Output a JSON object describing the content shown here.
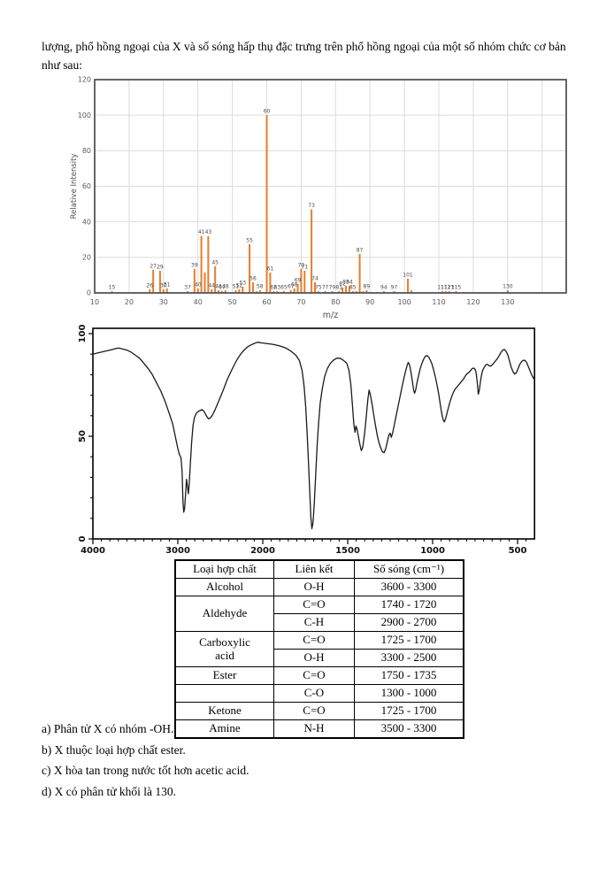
{
  "page": {
    "intro": "lượng, phổ hồng ngoại của X và số sóng hấp thụ đặc trưng trên phổ hồng ngoại của một số nhóm chức cơ bản như sau:",
    "statements": [
      "a) Phân tử X có nhóm -OH.",
      "b) X thuộc loại hợp chất ester.",
      "c) X hòa tan trong nước tốt hơn acetic acid.",
      "d) X có phân tử khối là 130."
    ]
  },
  "table": {
    "headers": [
      "Loại hợp chất",
      "Liên kết",
      "Số sóng (cm⁻¹)"
    ],
    "rows": [
      {
        "compound": "Alcohol",
        "bond": "O-H",
        "wavenumber": "3600 - 3300"
      },
      {
        "compound": "Aldehyde",
        "bond": "C=O",
        "wavenumber": "1740 - 1720"
      },
      {
        "bond": "C-H",
        "wavenumber": "2900 - 2700"
      },
      {
        "compound": "Carboxylic\nacid",
        "bond": "C=O",
        "wavenumber": "1725 - 1700"
      },
      {
        "bond": "O-H",
        "wavenumber": "3300 - 2500"
      },
      {
        "compound": "Ester",
        "bond": "C=O",
        "wavenumber": "1750 - 1735"
      },
      {
        "compound": "",
        "bond": "C-O",
        "wavenumber": "1300 - 1000"
      },
      {
        "compound": "Ketone",
        "bond": "C=O",
        "wavenumber": "1725 - 1700"
      },
      {
        "compound": "Amine",
        "bond": "N-H",
        "wavenumber": "3500 - 3300"
      }
    ]
  },
  "chart_data": [
    {
      "type": "bar",
      "name": "mass-spectrum",
      "xlabel": "m/z",
      "ylabel": "Relative Intensity",
      "xlim": [
        10,
        147
      ],
      "ylim": [
        0,
        120
      ],
      "x_ticks": [
        10,
        20,
        30,
        40,
        50,
        60,
        70,
        80,
        90,
        100,
        110,
        120,
        130
      ],
      "y_ticks": [
        0,
        20,
        40,
        60,
        80,
        100,
        120
      ],
      "grid": true,
      "bar_color": "#E87D2B",
      "label_color": "#4a4a4a",
      "axis_color": "#55565A",
      "grid_color": "#dcdcdc",
      "peaks": [
        [
          15,
          1
        ],
        [
          26,
          2
        ],
        [
          27,
          13
        ],
        [
          29,
          12.5
        ],
        [
          30,
          2
        ],
        [
          31,
          2.5
        ],
        [
          37,
          1
        ],
        [
          39,
          13.5
        ],
        [
          40,
          2.5
        ],
        [
          41,
          32
        ],
        [
          42,
          11.5
        ],
        [
          43,
          32
        ],
        [
          44,
          2
        ],
        [
          45,
          15
        ],
        [
          46,
          1.5
        ],
        [
          47,
          1
        ],
        [
          48,
          1.5
        ],
        [
          51,
          1.5
        ],
        [
          52,
          2
        ],
        [
          53,
          3.5
        ],
        [
          55,
          27.5
        ],
        [
          56,
          6
        ],
        [
          57,
          1
        ],
        [
          58,
          1.5
        ],
        [
          60,
          100
        ],
        [
          61,
          11.5
        ],
        [
          62,
          1
        ],
        [
          63,
          1
        ],
        [
          65,
          1
        ],
        [
          67,
          1.5
        ],
        [
          68,
          2.5
        ],
        [
          69,
          5
        ],
        [
          70,
          13.5
        ],
        [
          71,
          12.5
        ],
        [
          73,
          47
        ],
        [
          74,
          6
        ],
        [
          75,
          1
        ],
        [
          77,
          1
        ],
        [
          79,
          1
        ],
        [
          81,
          1
        ],
        [
          82,
          3
        ],
        [
          83,
          4
        ],
        [
          84,
          4
        ],
        [
          85,
          1
        ],
        [
          86,
          1
        ],
        [
          87,
          22
        ],
        [
          88,
          1
        ],
        [
          89,
          1.5
        ],
        [
          94,
          1
        ],
        [
          97,
          1
        ],
        [
          101,
          8
        ],
        [
          102,
          1.5
        ],
        [
          111,
          1
        ],
        [
          112,
          1
        ],
        [
          113,
          1
        ],
        [
          115,
          1
        ],
        [
          130,
          1.5
        ]
      ],
      "unlabeled": [
        42,
        57,
        86,
        88,
        102
      ]
    },
    {
      "type": "line",
      "name": "ir-spectrum",
      "x_ticks": [
        4000,
        3000,
        2000,
        1500,
        1000,
        500
      ],
      "x_scale_note": "wavenumber axis, scale change at 2000 (1000/div above, 500/div below)",
      "xlim": [
        4000,
        400
      ],
      "ylim": [
        0,
        100
      ],
      "y_ticks": [
        0,
        50,
        100
      ],
      "line_color": "#1a1a1a",
      "points": [
        [
          4000,
          90
        ],
        [
          3950,
          90.5
        ],
        [
          3900,
          91
        ],
        [
          3850,
          91.5
        ],
        [
          3800,
          92
        ],
        [
          3750,
          92.5
        ],
        [
          3700,
          93
        ],
        [
          3650,
          92.5
        ],
        [
          3600,
          92
        ],
        [
          3550,
          91
        ],
        [
          3500,
          89.5
        ],
        [
          3450,
          88
        ],
        [
          3400,
          85.5
        ],
        [
          3350,
          83
        ],
        [
          3300,
          80
        ],
        [
          3250,
          76
        ],
        [
          3200,
          72
        ],
        [
          3150,
          67
        ],
        [
          3100,
          61
        ],
        [
          3060,
          56
        ],
        [
          3030,
          50
        ],
        [
          3000,
          44
        ],
        [
          2980,
          41
        ],
        [
          2962,
          39.5
        ],
        [
          2950,
          33
        ],
        [
          2940,
          18
        ],
        [
          2930,
          13
        ],
        [
          2920,
          15
        ],
        [
          2908,
          22
        ],
        [
          2898,
          29
        ],
        [
          2888,
          26
        ],
        [
          2876,
          22
        ],
        [
          2866,
          27
        ],
        [
          2852,
          37
        ],
        [
          2838,
          47
        ],
        [
          2822,
          55
        ],
        [
          2805,
          59
        ],
        [
          2785,
          61
        ],
        [
          2765,
          62
        ],
        [
          2740,
          62.5
        ],
        [
          2715,
          63
        ],
        [
          2690,
          62
        ],
        [
          2665,
          60
        ],
        [
          2640,
          58.5
        ],
        [
          2615,
          59
        ],
        [
          2590,
          60.5
        ],
        [
          2560,
          63
        ],
        [
          2530,
          66
        ],
        [
          2500,
          69
        ],
        [
          2460,
          73
        ],
        [
          2420,
          77.5
        ],
        [
          2380,
          81
        ],
        [
          2340,
          84.5
        ],
        [
          2300,
          87.5
        ],
        [
          2260,
          90
        ],
        [
          2220,
          92
        ],
        [
          2180,
          93.5
        ],
        [
          2140,
          94.5
        ],
        [
          2100,
          95.2
        ],
        [
          2060,
          95.8
        ],
        [
          2020,
          95.5
        ],
        [
          1980,
          95.2
        ],
        [
          1940,
          94.8
        ],
        [
          1900,
          94
        ],
        [
          1865,
          93
        ],
        [
          1835,
          91.5
        ],
        [
          1805,
          89.5
        ],
        [
          1785,
          87
        ],
        [
          1768,
          82
        ],
        [
          1756,
          74
        ],
        [
          1747,
          64
        ],
        [
          1739,
          52
        ],
        [
          1731,
          38
        ],
        [
          1724,
          24
        ],
        [
          1717,
          11
        ],
        [
          1711,
          5
        ],
        [
          1704,
          8
        ],
        [
          1697,
          17
        ],
        [
          1689,
          30
        ],
        [
          1680,
          45
        ],
        [
          1671,
          57
        ],
        [
          1662,
          66
        ],
        [
          1650,
          73
        ],
        [
          1636,
          79
        ],
        [
          1620,
          83
        ],
        [
          1602,
          85.5
        ],
        [
          1585,
          87
        ],
        [
          1565,
          88
        ],
        [
          1545,
          88
        ],
        [
          1525,
          87
        ],
        [
          1505,
          85.5
        ],
        [
          1492,
          82
        ],
        [
          1481,
          75
        ],
        [
          1472,
          65
        ],
        [
          1464,
          56
        ],
        [
          1457,
          52
        ],
        [
          1451,
          55
        ],
        [
          1444,
          53
        ],
        [
          1436,
          49.5
        ],
        [
          1428,
          46
        ],
        [
          1420,
          43
        ],
        [
          1412,
          44.5
        ],
        [
          1404,
          49
        ],
        [
          1396,
          55
        ],
        [
          1388,
          62
        ],
        [
          1381,
          68
        ],
        [
          1374,
          72.5
        ],
        [
          1366,
          70
        ],
        [
          1356,
          65.5
        ],
        [
          1346,
          60
        ],
        [
          1336,
          55
        ],
        [
          1326,
          50.5
        ],
        [
          1316,
          47
        ],
        [
          1306,
          44.5
        ],
        [
          1296,
          42.5
        ],
        [
          1286,
          42
        ],
        [
          1276,
          44
        ],
        [
          1266,
          47.5
        ],
        [
          1258,
          50.5
        ],
        [
          1250,
          51.5
        ],
        [
          1243,
          49.5
        ],
        [
          1236,
          51.5
        ],
        [
          1228,
          54.5
        ],
        [
          1220,
          58
        ],
        [
          1210,
          62
        ],
        [
          1200,
          66
        ],
        [
          1190,
          70
        ],
        [
          1180,
          74
        ],
        [
          1170,
          78
        ],
        [
          1160,
          81.5
        ],
        [
          1150,
          84.5
        ],
        [
          1143,
          86
        ],
        [
          1135,
          84.5
        ],
        [
          1127,
          81
        ],
        [
          1119,
          76.5
        ],
        [
          1112,
          72.5
        ],
        [
          1106,
          71
        ],
        [
          1100,
          72.5
        ],
        [
          1092,
          76
        ],
        [
          1083,
          79.5
        ],
        [
          1073,
          83
        ],
        [
          1063,
          85.5
        ],
        [
          1053,
          87.5
        ],
        [
          1043,
          89
        ],
        [
          1033,
          89.3
        ],
        [
          1023,
          88.5
        ],
        [
          1013,
          87
        ],
        [
          1003,
          85
        ],
        [
          993,
          82
        ],
        [
          983,
          78.5
        ],
        [
          973,
          74.5
        ],
        [
          963,
          70
        ],
        [
          953,
          64.5
        ],
        [
          945,
          60.5
        ],
        [
          938,
          58
        ],
        [
          931,
          57
        ],
        [
          924,
          58.5
        ],
        [
          916,
          61
        ],
        [
          907,
          64
        ],
        [
          897,
          67
        ],
        [
          887,
          69.5
        ],
        [
          877,
          71.5
        ],
        [
          867,
          73
        ],
        [
          857,
          74
        ],
        [
          847,
          75
        ],
        [
          837,
          76
        ],
        [
          827,
          77
        ],
        [
          817,
          78
        ],
        [
          807,
          79.5
        ],
        [
          797,
          80.5
        ],
        [
          787,
          81
        ],
        [
          777,
          82
        ],
        [
          767,
          83
        ],
        [
          757,
          83.2
        ],
        [
          749,
          82.5
        ],
        [
          743,
          80.5
        ],
        [
          737,
          76
        ],
        [
          731,
          70.5
        ],
        [
          725,
          72.5
        ],
        [
          719,
          76.5
        ],
        [
          713,
          79.5
        ],
        [
          706,
          82
        ],
        [
          697,
          83.5
        ],
        [
          687,
          84.8
        ],
        [
          677,
          85
        ],
        [
          667,
          84.3
        ],
        [
          657,
          84.2
        ],
        [
          647,
          85
        ],
        [
          637,
          86
        ],
        [
          627,
          87
        ],
        [
          617,
          88
        ],
        [
          607,
          89.5
        ],
        [
          597,
          91
        ],
        [
          587,
          92
        ],
        [
          577,
          92.3
        ],
        [
          567,
          91.3
        ],
        [
          557,
          89.5
        ],
        [
          547,
          86.5
        ],
        [
          537,
          83.5
        ],
        [
          527,
          81.5
        ],
        [
          517,
          80.3
        ],
        [
          507,
          81
        ],
        [
          497,
          83
        ],
        [
          487,
          85
        ],
        [
          477,
          86.3
        ],
        [
          467,
          87
        ],
        [
          457,
          87
        ],
        [
          447,
          86
        ],
        [
          437,
          84
        ],
        [
          427,
          82
        ],
        [
          417,
          80
        ],
        [
          407,
          78.3
        ],
        [
          400,
          77.5
        ]
      ]
    }
  ]
}
